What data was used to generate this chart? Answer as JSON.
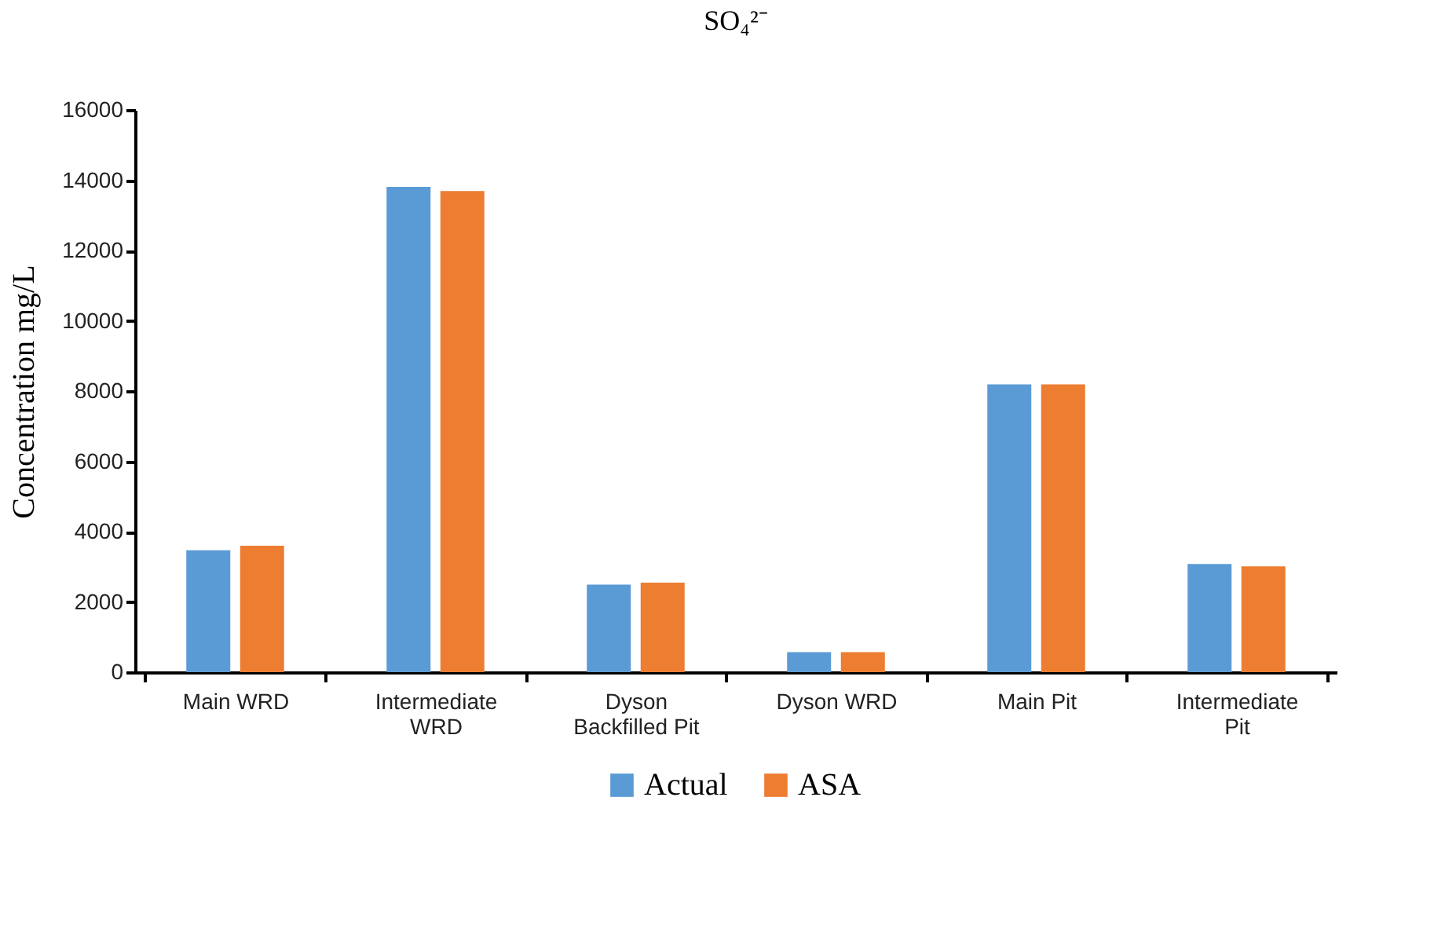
{
  "chart_data": {
    "type": "bar",
    "title": "SO₄²⁻",
    "ylabel": "Concentration mg/L",
    "categories": [
      "Main WRD",
      "Intermediate WRD",
      "Dyson Backfilled Pit",
      "Dyson WRD",
      "Main Pit",
      "Intermediate Pit"
    ],
    "series": [
      {
        "name": "Actual",
        "color": "#5b9bd5",
        "values": [
          3470,
          13810,
          2490,
          570,
          8190,
          3080
        ]
      },
      {
        "name": "ASA",
        "color": "#ed7d31",
        "values": [
          3600,
          13690,
          2550,
          570,
          8190,
          3010
        ]
      }
    ],
    "ylim": [
      0,
      16000
    ],
    "yticks": [
      0,
      2000,
      4000,
      6000,
      8000,
      10000,
      12000,
      14000,
      16000
    ],
    "grid": false,
    "legend": "bottom"
  }
}
